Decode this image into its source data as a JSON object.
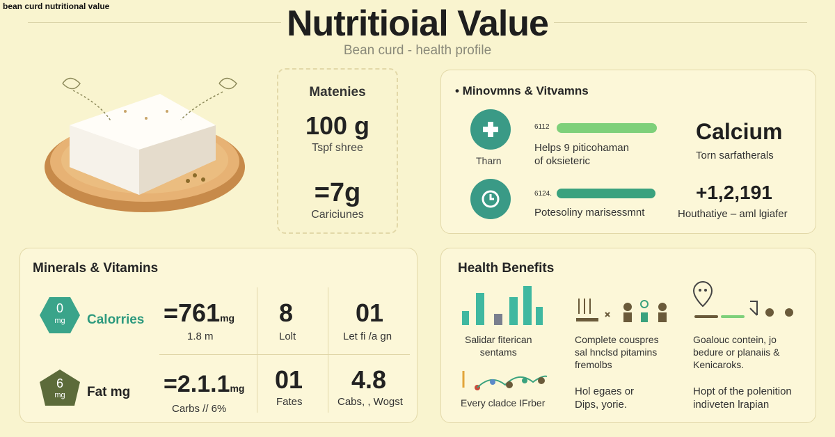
{
  "corner_title": "bean curd nutritional value",
  "title": "Nutritioial Value",
  "subtitle": "Bean curd - health profile",
  "serving": {
    "heading": "Matenies",
    "big1": "100 g",
    "sub1": "Tspf shree",
    "big2": "=7g",
    "sub2": "Cariciunes"
  },
  "minerals_top": {
    "title": "• Minovmns & Vitvamns",
    "row1": {
      "icon": "plus-icon",
      "icon_label": "Tharn",
      "bar_value": "6112",
      "desc_line1": "Helps 9 piticohaman",
      "desc_line2": "of oksieteric",
      "big": "Calcium",
      "big_sub": "Torn sarfatherals",
      "bar_color": "#7ed07a"
    },
    "row2": {
      "icon": "clock-icon",
      "bar_value": "6124.",
      "desc": "Potesoliny marisessmnt",
      "big": "+1,2,191",
      "big_sub": "Houthatiye – aml lgiafer",
      "bar_color": "#3aa27e"
    }
  },
  "minerals_bottom": {
    "title": "Minerals & Vitamins",
    "row1": {
      "badge_top": "0",
      "badge_bottom": "mg",
      "badge_color": "#3aa48a",
      "label": "Calorries",
      "value": "=761",
      "value_unit": "mg",
      "value_sub": "1.8 m",
      "c2": "8",
      "c2_sub": "Lolt",
      "c3": "01",
      "c3_sub": "Let fi /a gn"
    },
    "row2": {
      "badge_top": "6",
      "badge_bottom": "mg",
      "badge_color": "#5c6b3a",
      "label": "Fat mg",
      "value": "=2.1.1",
      "value_unit": "mg",
      "value_sub": "Carbs // 6%",
      "c2": "01",
      "c2_sub": "Fates",
      "c3": "4.8",
      "c3_sub": "Cabs, , Wogst"
    }
  },
  "health": {
    "title": "Health Benefits",
    "col1_line1": "Salidar fiterican",
    "col1_line2": "sentams",
    "col2_line1": "Complete couspres",
    "col2_line2": "sal hnclsd pitamins",
    "col2_line3": "fremolbs",
    "col3_line1": "Goalouc contein, jo",
    "col3_line2": "bedure or planaiis &",
    "col3_line3": "Kenicaroks.",
    "col1b": "Every cladce IFrber",
    "col2b_line1": "Hol egaes or",
    "col2b_line2": "Dips, yorie.",
    "col3b_line1": "Hopt of the polenition",
    "col3b_line2": "indiveten lrapian"
  },
  "colors": {
    "background": "#f9f4cf",
    "accent_green": "#3a9a86",
    "light_green": "#7ed07a"
  }
}
